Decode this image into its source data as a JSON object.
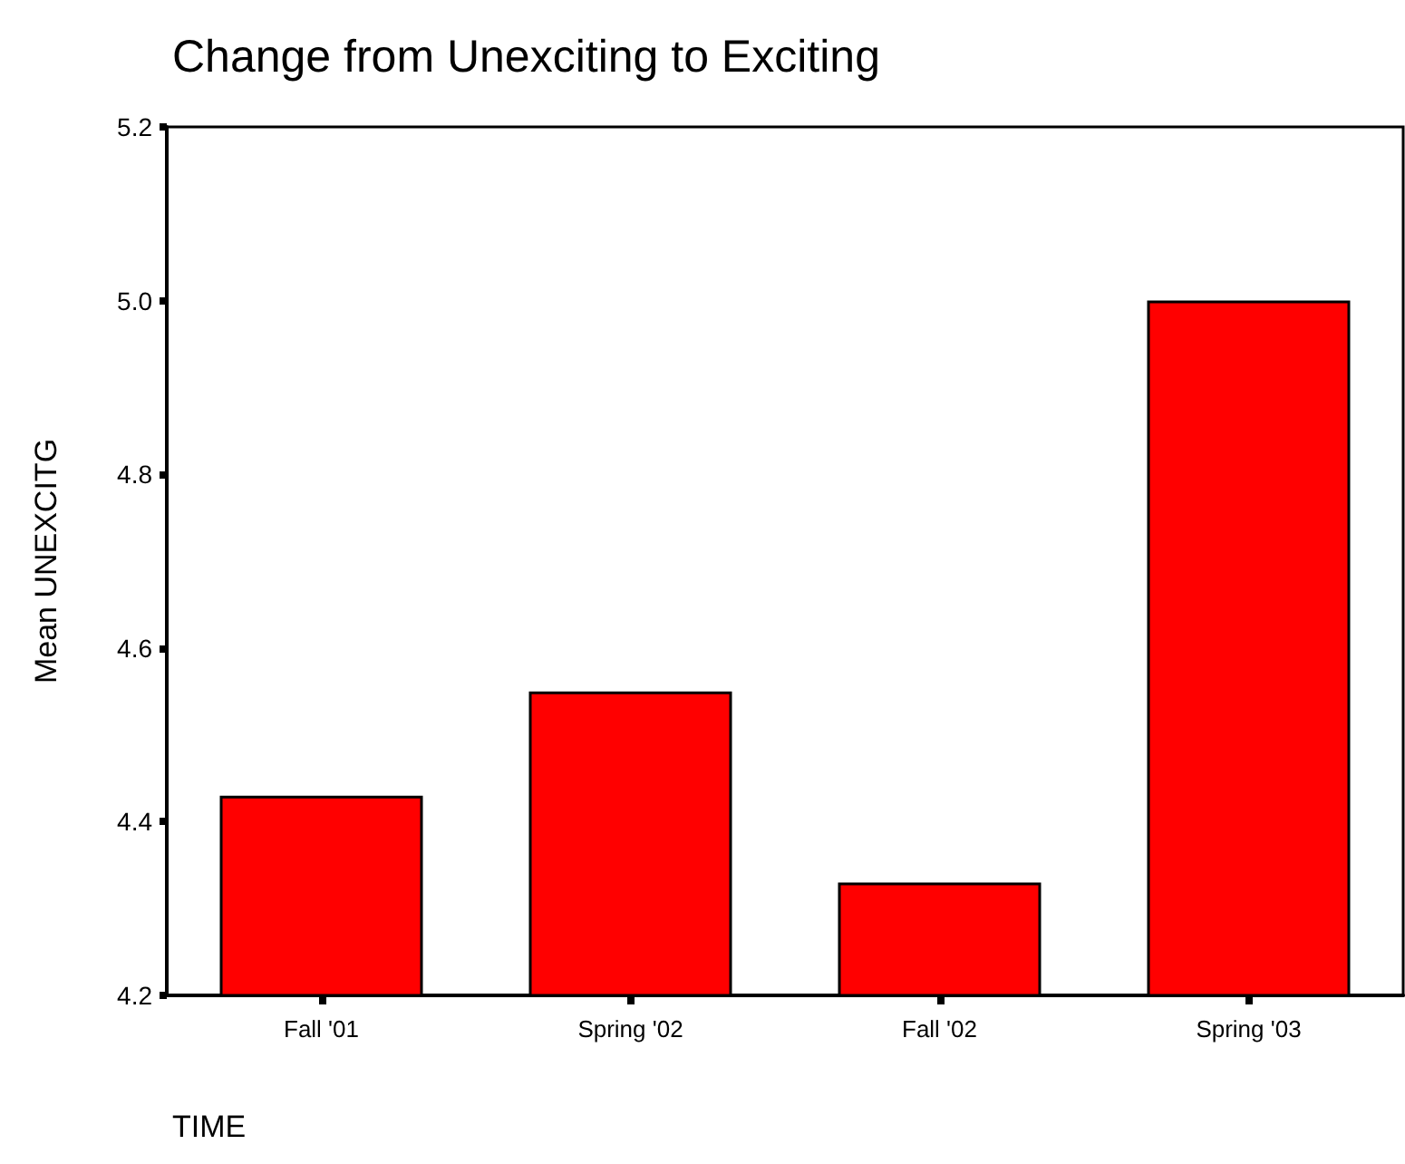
{
  "chart_data": {
    "type": "bar",
    "title": "Change from Unexciting to Exciting",
    "xlabel": "TIME",
    "ylabel": "Mean UNEXCITG",
    "categories": [
      "Fall '01",
      "Spring '02",
      "Fall '02",
      "Spring '03"
    ],
    "values": [
      4.43,
      4.55,
      4.33,
      5.0
    ],
    "color": "#ff0000",
    "ylim": [
      4.2,
      5.2
    ],
    "yticks": [
      4.2,
      4.4,
      4.6,
      4.8,
      {
        "value": 5.0,
        "label": "5.0"
      },
      5.2
    ],
    "grid": false
  }
}
